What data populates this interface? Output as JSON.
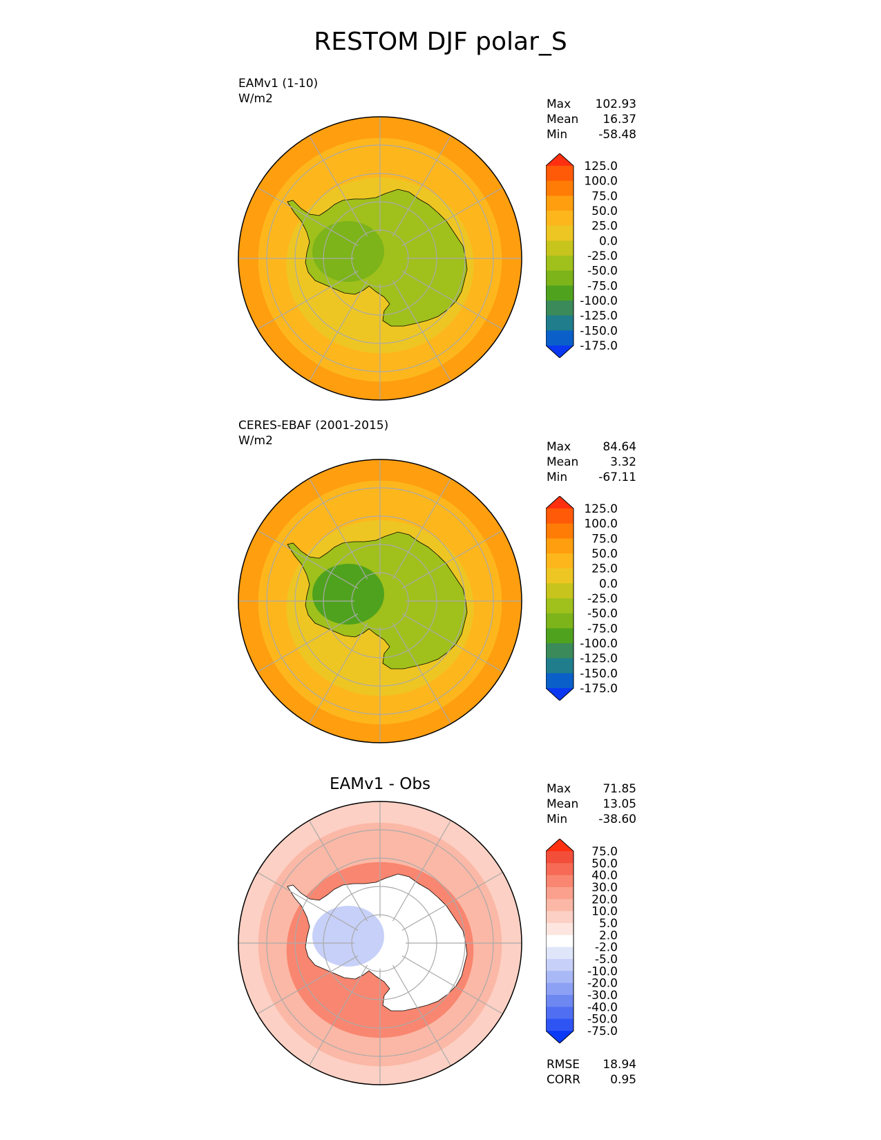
{
  "figure_title": "RESTOM DJF polar_S",
  "panels": [
    {
      "title": "EAMv1 (1-10)",
      "units": "W/m2",
      "stats": {
        "max_label": "Max",
        "max": "102.93",
        "mean_label": "Mean",
        "mean": "16.37",
        "min_label": "Min",
        "min": "-58.48"
      }
    },
    {
      "title": "CERES-EBAF (2001-2015)",
      "units": "W/m2",
      "stats": {
        "max_label": "Max",
        "max": "84.64",
        "mean_label": "Mean",
        "mean": "3.32",
        "min_label": "Min",
        "min": "-67.11"
      }
    },
    {
      "title": "EAMv1 - Obs",
      "stats": {
        "max_label": "Max",
        "max": "71.85",
        "mean_label": "Mean",
        "mean": "13.05",
        "min_label": "Min",
        "min": "-38.60"
      },
      "metrics": {
        "rmse_label": "RMSE",
        "rmse": "18.94",
        "corr_label": "CORR",
        "corr": "0.95"
      }
    }
  ],
  "colorbars": {
    "main": {
      "levels": [
        "125.0",
        "100.0",
        "75.0",
        "50.0",
        "25.0",
        "0.0",
        "-25.0",
        "-50.0",
        "-75.0",
        "-100.0",
        "-125.0",
        "-150.0",
        "-175.0"
      ],
      "colors": [
        "#ff3010",
        "#ff5a08",
        "#ff7c06",
        "#ff9e0f",
        "#fdb71d",
        "#eec623",
        "#c7c41d",
        "#a0c01c",
        "#7cb41a",
        "#4fa21e",
        "#3b8a5a",
        "#1f7d8c",
        "#0a60c8",
        "#0a38f0"
      ]
    },
    "diff": {
      "levels": [
        "75.0",
        "50.0",
        "40.0",
        "30.0",
        "20.0",
        "10.0",
        "5.0",
        "2.0",
        "-2.0",
        "-5.0",
        "-10.0",
        "-20.0",
        "-30.0",
        "-40.0",
        "-50.0",
        "-75.0"
      ],
      "colors": [
        "#ff3010",
        "#f24e3a",
        "#f76a55",
        "#f98670",
        "#faa08c",
        "#fbb8a6",
        "#fcd0c4",
        "#fde6df",
        "#ffffff",
        "#e0e6fa",
        "#c6d0f8",
        "#a9b8f6",
        "#8ca0f4",
        "#6e88f2",
        "#4f6ef2",
        "#2f54f4",
        "#0a3af8"
      ]
    }
  },
  "maps": [
    {
      "ocean_fill": "#fdb71d",
      "band_fill": "#eec623",
      "outer_fill": "#ff9e0f",
      "land_fill": "#a0c01c",
      "land_dark": "#7cb41a"
    },
    {
      "ocean_fill": "#fdb71d",
      "band_fill": "#eec623",
      "outer_fill": "#ff9e0f",
      "land_fill": "#a0c01c",
      "land_dark": "#4fa21e"
    },
    {
      "ocean_fill": "#fbb8a6",
      "band_fill": "#f98670",
      "outer_fill": "#fcd0c4",
      "land_fill": "#ffffff",
      "land_dark": "#c6d0f8"
    }
  ]
}
